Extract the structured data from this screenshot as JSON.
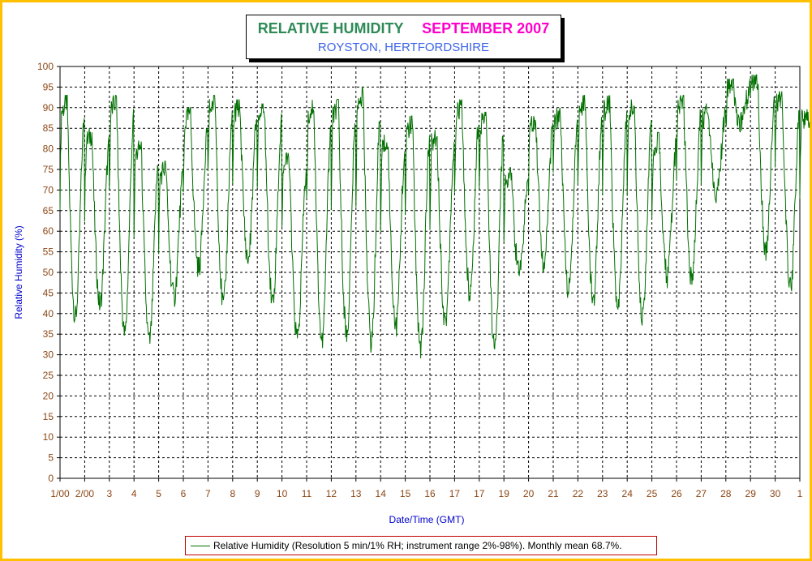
{
  "title": {
    "main": "RELATIVE HUMIDITY",
    "month": "SEPTEMBER 2007",
    "subtitle": "ROYSTON, HERTFORDSHIRE"
  },
  "legend": {
    "label": "Relative Humidity (Resolution 5 min/1% RH; instrument range 2%-98%). Monthly mean 68.7%."
  },
  "colors": {
    "frame": "#ffc000",
    "series": "#007000",
    "axis_text": "#8b4513",
    "axis_label": "#0000cc",
    "title_main": "#2e8b57",
    "title_month": "#ff00cc",
    "title_sub": "#3c64e6",
    "legend_border": "#c00000"
  },
  "chart_data": {
    "type": "line",
    "title": "RELATIVE HUMIDITY SEPTEMBER 2007",
    "subtitle": "ROYSTON, HERTFORDSHIRE",
    "xlabel": "Date/Time (GMT)",
    "ylabel": "Relative Humidity (%)",
    "ylim": [
      0,
      100
    ],
    "yticks": [
      0,
      5,
      10,
      15,
      20,
      25,
      30,
      35,
      40,
      45,
      50,
      55,
      60,
      65,
      70,
      75,
      80,
      85,
      90,
      95,
      100
    ],
    "xlim": [
      "2007-09-01 00:00",
      "2007-10-01 00:00"
    ],
    "xtick_labels": [
      "1/00",
      "2/00",
      "3",
      "4",
      "5",
      "6",
      "7",
      "8",
      "9",
      "10",
      "11",
      "12",
      "13",
      "14",
      "15",
      "16",
      "17",
      "17",
      "19",
      "20",
      "21",
      "22",
      "23",
      "24",
      "25",
      "26",
      "27",
      "28",
      "29",
      "30",
      "1"
    ],
    "grid": true,
    "legend_position": "bottom",
    "series": [
      {
        "name": "Relative Humidity (Resolution 5 min/1% RH; instrument range 2%-98%). Monthly mean 68.7%.",
        "daily_cycle": [
          {
            "date": "2007-09-01",
            "max": 92,
            "min": 39
          },
          {
            "date": "2007-09-02",
            "max": 84,
            "min": 42
          },
          {
            "date": "2007-09-03",
            "max": 92,
            "min": 35
          },
          {
            "date": "2007-09-04",
            "max": 81,
            "min": 33
          },
          {
            "date": "2007-09-05",
            "max": 76,
            "min": 44
          },
          {
            "date": "2007-09-06",
            "max": 89,
            "min": 51
          },
          {
            "date": "2007-09-07",
            "max": 92,
            "min": 42
          },
          {
            "date": "2007-09-08",
            "max": 91,
            "min": 53
          },
          {
            "date": "2007-09-09",
            "max": 90,
            "min": 43
          },
          {
            "date": "2007-09-10",
            "max": 78,
            "min": 34
          },
          {
            "date": "2007-09-11",
            "max": 91,
            "min": 33
          },
          {
            "date": "2007-09-12",
            "max": 91,
            "min": 35
          },
          {
            "date": "2007-09-13",
            "max": 94,
            "min": 33
          },
          {
            "date": "2007-09-14",
            "max": 83,
            "min": 37
          },
          {
            "date": "2007-09-15",
            "max": 87,
            "min": 32
          },
          {
            "date": "2007-09-16",
            "max": 84,
            "min": 38
          },
          {
            "date": "2007-09-17",
            "max": 91,
            "min": 45
          },
          {
            "date": "2007-09-18",
            "max": 88,
            "min": 31
          },
          {
            "date": "2007-09-19",
            "max": 75,
            "min": 50
          },
          {
            "date": "2007-09-20",
            "max": 88,
            "min": 52
          },
          {
            "date": "2007-09-21",
            "max": 89,
            "min": 46
          },
          {
            "date": "2007-09-22",
            "max": 92,
            "min": 43
          },
          {
            "date": "2007-09-23",
            "max": 92,
            "min": 41
          },
          {
            "date": "2007-09-24",
            "max": 91,
            "min": 39
          },
          {
            "date": "2007-09-25",
            "max": 83,
            "min": 49
          },
          {
            "date": "2007-09-26",
            "max": 92,
            "min": 48
          },
          {
            "date": "2007-09-27",
            "max": 90,
            "min": 69
          },
          {
            "date": "2007-09-28",
            "max": 96,
            "min": 86
          },
          {
            "date": "2007-09-29",
            "max": 97,
            "min": 55
          },
          {
            "date": "2007-09-30",
            "max": 93,
            "min": 46
          },
          {
            "date": "2007-10-01",
            "max": 89,
            "min": 78
          }
        ]
      }
    ]
  }
}
